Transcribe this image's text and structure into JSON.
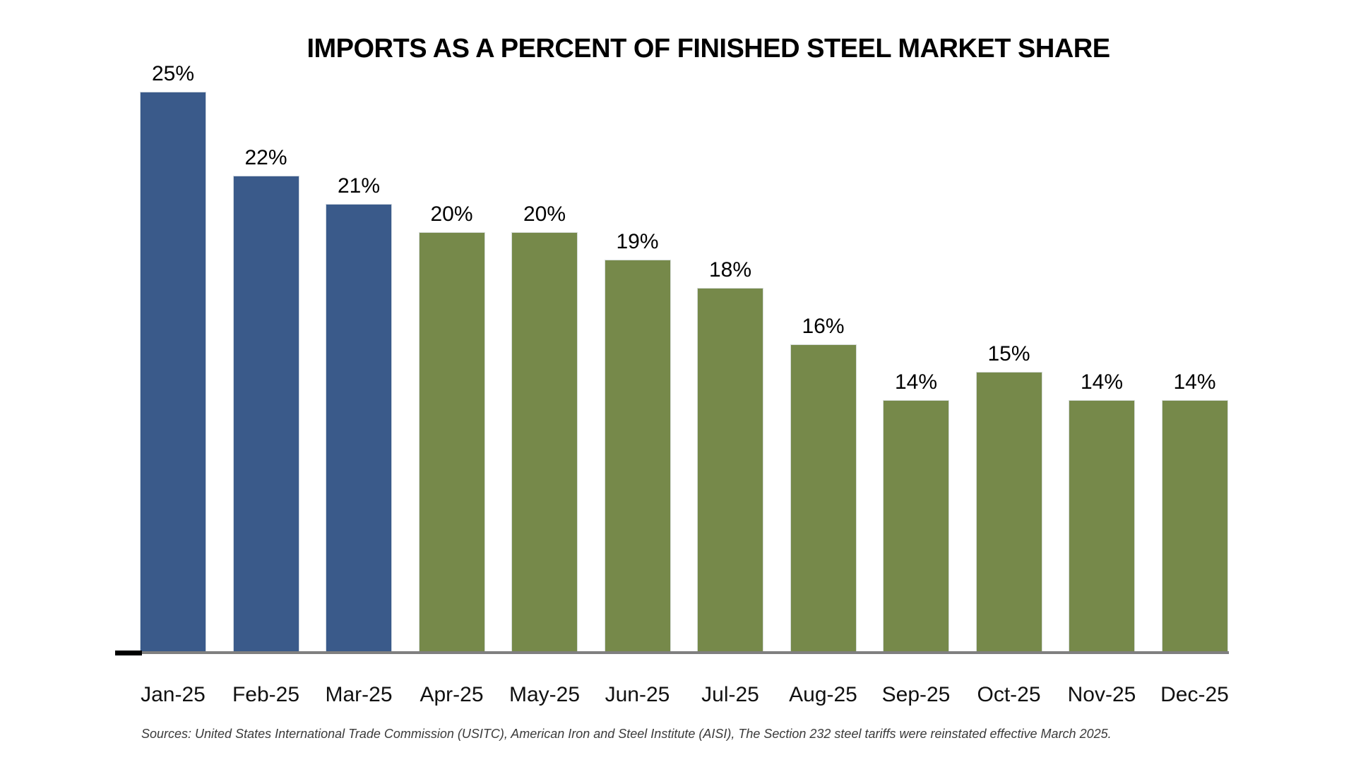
{
  "chart_data": {
    "type": "bar",
    "title": "IMPORTS AS A PERCENT OF FINISHED STEEL MARKET SHARE",
    "categories": [
      "Jan-25",
      "Feb-25",
      "Mar-25",
      "Apr-25",
      "May-25",
      "Jun-25",
      "Jul-25",
      "Aug-25",
      "Sep-25",
      "Oct-25",
      "Nov-25",
      "Dec-25"
    ],
    "values": [
      25,
      22,
      21,
      20,
      20,
      19,
      18,
      16,
      14,
      15,
      14,
      14
    ],
    "data_labels": [
      "25%",
      "22%",
      "21%",
      "20%",
      "20%",
      "19%",
      "18%",
      "16%",
      "14%",
      "15%",
      "14%",
      "14%"
    ],
    "bar_colors": [
      "#3A5A8A",
      "#3A5A8A",
      "#3A5A8A",
      "#76894A",
      "#76894A",
      "#76894A",
      "#76894A",
      "#76894A",
      "#76894A",
      "#76894A",
      "#76894A",
      "#76894A"
    ],
    "xlabel": "",
    "ylabel": "",
    "ylim": [
      5,
      25
    ],
    "grid": false,
    "legend_position": "none",
    "axis_line_color": "#7f7f7f",
    "axis_tick_color": "#000000",
    "footnote": "Sources: United States International Trade Commission (USITC), American Iron and Steel Institute (AISI), The Section 232 steel tariffs were reinstated effective March 2025."
  }
}
